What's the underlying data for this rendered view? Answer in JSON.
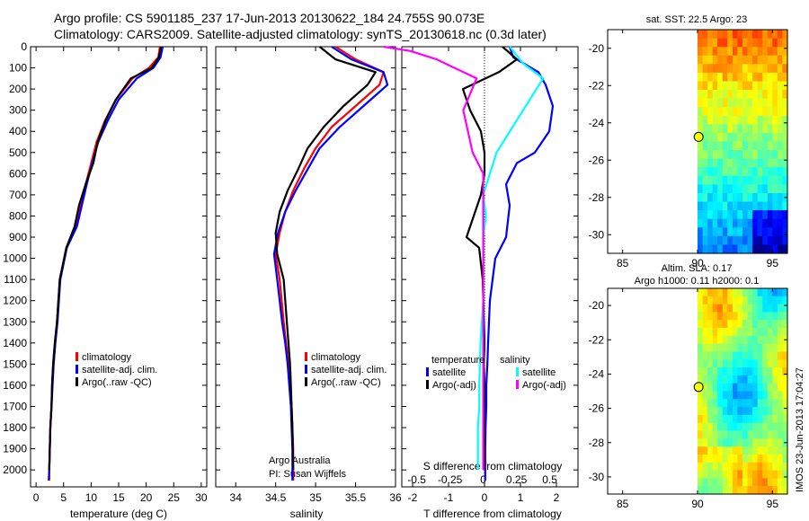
{
  "header": {
    "line1": "Argo profile: CS 5901185_237 17-Jun-2013 20130622_184 24.755S 90.073E",
    "line2": "Climatology: CARS2009. Satellite-adjusted climatology: synTS_20130618.nc (0.3d later)"
  },
  "colors": {
    "climatology": "#ff0000",
    "satellite": "#0000ff",
    "argo": "#000000",
    "satellite_salinity": "#00ffff",
    "argo_salinity": "#ff00ff"
  },
  "chart_data": [
    {
      "type": "line",
      "xlabel": "temperature (deg C)",
      "ylabel": "",
      "xlim": [
        -1,
        31
      ],
      "ylim": [
        2080,
        0
      ],
      "xticks": [
        "0",
        "5",
        "10",
        "15",
        "20",
        "25",
        "30"
      ],
      "yticks": [
        "0",
        "100",
        "200",
        "300",
        "400",
        "500",
        "600",
        "700",
        "800",
        "900",
        "1000",
        "1100",
        "1200",
        "1300",
        "1400",
        "1500",
        "1600",
        "1700",
        "1800",
        "1900",
        "2000"
      ],
      "legend": {
        "placement": "bottom-center",
        "entries": [
          "climatology",
          "satellite-adj. clim.",
          "Argo(..raw -QC)"
        ]
      },
      "series": [
        {
          "name": "climatology",
          "color": "#ff0000",
          "x": [
            22.5,
            22.2,
            20.5,
            17.5,
            14.5,
            12.5,
            11.0,
            10.0,
            9.0,
            8.0,
            7.2,
            5.5,
            4.3,
            3.8,
            3.4,
            3.1,
            2.9,
            2.8,
            2.6,
            2.5,
            2.4,
            2.4
          ],
          "y": [
            0,
            50,
            100,
            150,
            250,
            350,
            450,
            550,
            650,
            750,
            850,
            950,
            1100,
            1300,
            1400,
            1500,
            1600,
            1700,
            1800,
            1900,
            2000,
            2050
          ]
        },
        {
          "name": "satellite-adj. clim.",
          "color": "#0000ff",
          "x": [
            23.0,
            22.6,
            21.3,
            18.3,
            15.0,
            13.0,
            11.3,
            10.2,
            9.2,
            8.3,
            7.4,
            5.6,
            4.4,
            3.9,
            3.5,
            3.2,
            3.0,
            2.8,
            2.6,
            2.5,
            2.4,
            2.3
          ],
          "y": [
            0,
            50,
            100,
            150,
            250,
            350,
            450,
            550,
            650,
            750,
            850,
            950,
            1100,
            1300,
            1400,
            1500,
            1600,
            1700,
            1800,
            1900,
            2000,
            2050
          ]
        },
        {
          "name": "Argo(..raw -QC)",
          "color": "#000000",
          "x": [
            22.7,
            22.3,
            21.0,
            17.2,
            14.5,
            12.6,
            11.2,
            10.4,
            9.0,
            7.8,
            7.0,
            5.5,
            4.3,
            3.8,
            3.4,
            3.1,
            2.9,
            2.8,
            2.6,
            2.5,
            2.4
          ],
          "y": [
            0,
            50,
            100,
            150,
            250,
            350,
            450,
            550,
            650,
            750,
            850,
            950,
            1100,
            1300,
            1400,
            1500,
            1600,
            1700,
            1800,
            1900,
            2000
          ]
        }
      ]
    },
    {
      "type": "line",
      "xlabel": "salinity",
      "xlim": [
        33.75,
        36.0
      ],
      "ylim": [
        2080,
        0
      ],
      "xticks": [
        "34",
        "34.5",
        "35",
        "35.5",
        "36"
      ],
      "legend": {
        "placement": "bottom-center",
        "entries": [
          "climatology",
          "satellite-adj. clim.",
          "Argo(..raw -QC)"
        ]
      },
      "annotation": [
        "Argo Australia",
        "PI: Susan Wijffels"
      ],
      "series": [
        {
          "name": "climatology",
          "color": "#ff0000",
          "x": [
            35.25,
            35.5,
            35.85,
            35.8,
            35.5,
            35.2,
            35.0,
            34.85,
            34.72,
            34.62,
            34.55,
            34.5,
            34.55,
            34.6,
            34.63,
            34.66,
            34.68,
            34.7,
            34.71,
            34.72,
            34.72
          ],
          "y": [
            0,
            60,
            120,
            180,
            280,
            380,
            480,
            580,
            680,
            780,
            880,
            980,
            1100,
            1300,
            1400,
            1500,
            1600,
            1700,
            1800,
            1900,
            2050
          ]
        },
        {
          "name": "satellite-adj. clim.",
          "color": "#0000ff",
          "x": [
            35.2,
            35.45,
            35.85,
            35.9,
            35.6,
            35.3,
            35.05,
            34.9,
            34.75,
            34.62,
            34.53,
            34.48,
            34.52,
            34.58,
            34.62,
            34.65,
            34.67,
            34.69,
            34.7,
            34.71,
            34.71
          ],
          "y": [
            0,
            60,
            120,
            180,
            280,
            380,
            480,
            580,
            680,
            780,
            880,
            980,
            1100,
            1300,
            1400,
            1500,
            1600,
            1700,
            1800,
            1900,
            2050
          ]
        },
        {
          "name": "Argo(..raw -QC)",
          "color": "#000000",
          "x": [
            35.05,
            35.25,
            35.75,
            35.65,
            35.35,
            35.1,
            34.9,
            34.78,
            34.65,
            34.55,
            34.5,
            34.52,
            34.6,
            34.64,
            34.66,
            34.68,
            34.69,
            34.7,
            34.71,
            34.72
          ],
          "y": [
            0,
            60,
            120,
            180,
            280,
            380,
            480,
            580,
            680,
            780,
            880,
            980,
            1100,
            1300,
            1400,
            1500,
            1600,
            1700,
            1800,
            2000
          ]
        }
      ]
    },
    {
      "type": "line",
      "xlabel": "T difference from climatology",
      "xlabel_top": "S difference from climatology",
      "xlim": [
        -2.3,
        2.6
      ],
      "ylim": [
        2080,
        0
      ],
      "xticks": [
        "-2",
        "-1",
        "0",
        "1",
        "2"
      ],
      "xticks_top": [
        "-0.5",
        "-0.25",
        "0",
        "0.25",
        "0.5"
      ],
      "legend": {
        "placement": "bottom-center",
        "headers": [
          "temperature",
          "salinity"
        ],
        "entries": [
          "satellite",
          "Argo(-adj)",
          "satellite",
          "Argo(-adj)"
        ]
      },
      "series": [
        {
          "name": "satellite",
          "quantity": "temperature",
          "color": "#0000ff",
          "x": [
            0.7,
            0.8,
            1.5,
            1.7,
            1.9,
            1.8,
            1.4,
            0.9,
            0.6,
            0.7,
            0.6,
            0.3,
            0.15,
            0.1,
            0.08,
            0.05,
            0.05,
            0.03,
            0.02,
            0.02
          ],
          "y": [
            0,
            50,
            120,
            180,
            280,
            400,
            500,
            550,
            650,
            750,
            900,
            1000,
            1200,
            1400,
            1500,
            1600,
            1700,
            1800,
            1900,
            2050
          ]
        },
        {
          "name": "Argo(-adj)",
          "quantity": "temperature",
          "color": "#000000",
          "x": [
            0.5,
            0.9,
            0.4,
            -0.6,
            -0.4,
            -0.1,
            0.0,
            0.0,
            -0.1,
            -0.3,
            -0.5,
            -0.15,
            -0.05,
            0.0,
            -0.02,
            0.0,
            0.0,
            0.0,
            0.0
          ],
          "y": [
            0,
            60,
            120,
            200,
            300,
            400,
            500,
            600,
            700,
            800,
            900,
            950,
            1100,
            1400,
            1500,
            1600,
            1700,
            1800,
            2000
          ]
        },
        {
          "name": "satellite",
          "quantity": "salinity",
          "color": "#00ffff",
          "x": [
            0.2,
            0.3,
            0.45,
            0.4,
            0.3,
            0.2,
            0.1,
            0.05,
            0.0,
            0.02,
            0.0,
            0.0,
            0.0,
            -0.02,
            -0.03,
            -0.03,
            -0.04,
            -0.04,
            -0.04
          ],
          "y": [
            0,
            80,
            150,
            200,
            300,
            400,
            500,
            600,
            700,
            800,
            900,
            1000,
            1200,
            1400,
            1600,
            1700,
            1800,
            1900,
            2000
          ]
        },
        {
          "name": "Argo(-adj)",
          "quantity": "salinity",
          "color": "#ff00ff",
          "x": [
            -0.75,
            -0.55,
            -0.35,
            -0.05,
            -0.15,
            -0.08,
            0.0,
            0.0,
            0.0,
            0.0,
            0.0,
            0.0,
            0.0,
            0.0
          ],
          "y": [
            0,
            20,
            60,
            150,
            300,
            500,
            600,
            700,
            900,
            1100,
            1400,
            1600,
            1800,
            2000
          ]
        }
      ]
    },
    {
      "type": "heatmap",
      "title": "sat. SST: 22.5 Argo: 23",
      "xlim": [
        84,
        96
      ],
      "ylim": [
        -31,
        -19
      ],
      "xticks": [
        "85",
        "90",
        "95"
      ],
      "yticks": [
        "-20",
        "-22",
        "-24",
        "-26",
        "-28",
        "-30"
      ],
      "marker": {
        "lon": 90.073,
        "lat": -24.755
      },
      "data_lon_range": [
        90,
        96
      ]
    },
    {
      "type": "heatmap",
      "title_lines": [
        "Altim. SLA: 0.17",
        "Argo h1000: 0.11 h2000: 0.1"
      ],
      "xlim": [
        84,
        96
      ],
      "ylim": [
        -31,
        -19
      ],
      "xticks": [
        "85",
        "90",
        "95"
      ],
      "yticks": [
        "-20",
        "-22",
        "-24",
        "-26",
        "-28",
        "-30"
      ],
      "marker": {
        "lon": 90.073,
        "lat": -24.755
      },
      "data_lon_range": [
        90,
        96
      ]
    }
  ],
  "footer_stamp": "IMOS 23-Jun-2013 17:04:27"
}
